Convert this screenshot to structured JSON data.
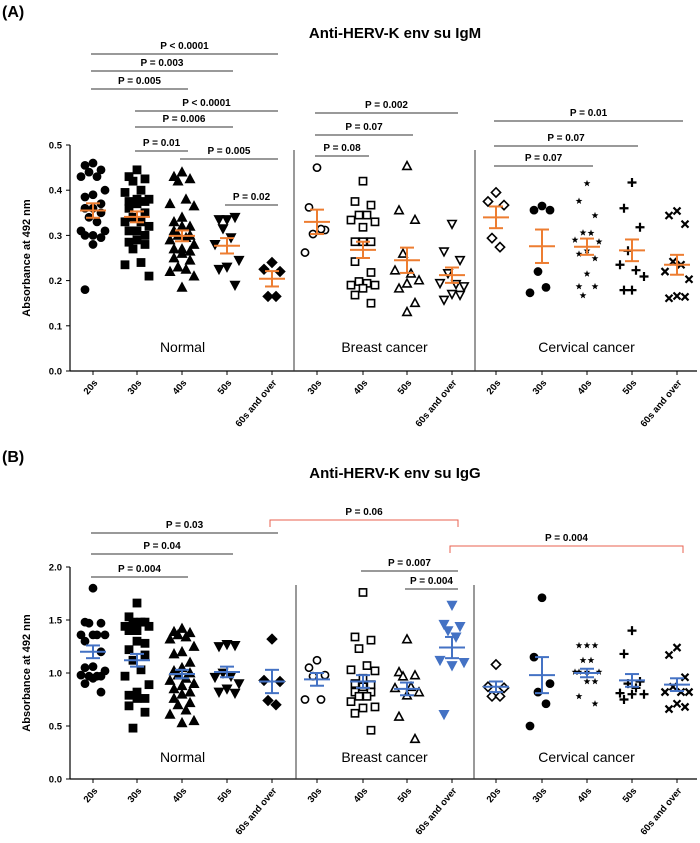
{
  "colors": {
    "igm_mean": "#ED7D31",
    "igg_mean": "#4472C4",
    "highlight_bracket": "#E8614F",
    "ink": "#000000"
  },
  "chart_data": [
    {
      "panel_label": "(A)",
      "type": "scatter",
      "title": "Anti-HERV-K env su IgM",
      "ylabel": "Absorbance at 492 nm",
      "ylim": [
        0,
        0.5
      ],
      "yticks": [
        "0.0",
        "0.1",
        "0.2",
        "0.3",
        "0.4",
        "0.5"
      ],
      "mean_color": "#ED7D31",
      "groups": [
        {
          "name": "Normal",
          "categories": [
            {
              "label": "20s",
              "marker": "circle",
              "filled": true,
              "mean": 0.355,
              "sem": 0.016,
              "values": [
                0.46,
                0.455,
                0.445,
                0.44,
                0.43,
                0.43,
                0.4,
                0.39,
                0.385,
                0.37,
                0.36,
                0.36,
                0.35,
                0.34,
                0.33,
                0.31,
                0.31,
                0.3,
                0.3,
                0.295,
                0.28,
                0.18
              ]
            },
            {
              "label": "30s",
              "marker": "square",
              "filled": true,
              "mean": 0.341,
              "sem": 0.012,
              "values": [
                0.445,
                0.43,
                0.425,
                0.42,
                0.4,
                0.395,
                0.38,
                0.38,
                0.375,
                0.375,
                0.37,
                0.36,
                0.35,
                0.34,
                0.33,
                0.33,
                0.32,
                0.31,
                0.31,
                0.3,
                0.29,
                0.285,
                0.28,
                0.27,
                0.24,
                0.235,
                0.21
              ]
            },
            {
              "label": "40s",
              "marker": "tri-up",
              "filled": true,
              "mean": 0.299,
              "sem": 0.012,
              "values": [
                0.44,
                0.43,
                0.425,
                0.42,
                0.38,
                0.37,
                0.365,
                0.34,
                0.33,
                0.32,
                0.32,
                0.31,
                0.3,
                0.3,
                0.295,
                0.29,
                0.28,
                0.27,
                0.27,
                0.265,
                0.26,
                0.25,
                0.245,
                0.23,
                0.225,
                0.22,
                0.21,
                0.185
              ]
            },
            {
              "label": "50s",
              "marker": "tri-down",
              "filled": true,
              "mean": 0.277,
              "sem": 0.017,
              "values": [
                0.335,
                0.335,
                0.34,
                0.315,
                0.295,
                0.28,
                0.245,
                0.23,
                0.225,
                0.19
              ]
            },
            {
              "label": "60s and over",
              "marker": "diamond",
              "filled": true,
              "mean": 0.204,
              "sem": 0.017,
              "values": [
                0.24,
                0.225,
                0.22,
                0.165,
                0.165
              ]
            }
          ]
        },
        {
          "name": "Breast cancer",
          "categories": [
            {
              "label": "30s",
              "marker": "circle",
              "filled": false,
              "mean": 0.33,
              "sem": 0.027,
              "values": [
                0.45,
                0.362,
                0.312,
                0.303,
                0.314,
                0.262
              ]
            },
            {
              "label": "40s",
              "marker": "square",
              "filled": false,
              "mean": 0.268,
              "sem": 0.018,
              "values": [
                0.42,
                0.375,
                0.367,
                0.345,
                0.345,
                0.334,
                0.33,
                0.318,
                0.286,
                0.286,
                0.286,
                0.242,
                0.218,
                0.198,
                0.194,
                0.19,
                0.19,
                0.183,
                0.168,
                0.15
              ]
            },
            {
              "label": "50s",
              "marker": "tri-up",
              "filled": false,
              "mean": 0.245,
              "sem": 0.028,
              "values": [
                0.454,
                0.356,
                0.335,
                0.26,
                0.216,
                0.223,
                0.201,
                0.194,
                0.183,
                0.151,
                0.131
              ]
            },
            {
              "label": "60s and over",
              "marker": "tri-down",
              "filled": false,
              "mean": 0.212,
              "sem": 0.017,
              "values": [
                0.325,
                0.264,
                0.245,
                0.216,
                0.192,
                0.194,
                0.187,
                0.17,
                0.157,
                0.168
              ]
            }
          ]
        },
        {
          "name": "Cervical cancer",
          "categories": [
            {
              "label": "20s",
              "marker": "diamond",
              "filled": false,
              "mean": 0.34,
              "sem": 0.024,
              "values": [
                0.395,
                0.375,
                0.367,
                0.294,
                0.274
              ]
            },
            {
              "label": "30s",
              "marker": "circle",
              "filled": true,
              "mean": 0.276,
              "sem": 0.037,
              "values": [
                0.365,
                0.356,
                0.356,
                0.22,
                0.185,
                0.173
              ]
            },
            {
              "label": "40s",
              "marker": "star",
              "filled": true,
              "mean": 0.275,
              "sem": 0.018,
              "values": [
                0.415,
                0.376,
                0.344,
                0.306,
                0.305,
                0.29,
                0.286,
                0.266,
                0.259,
                0.249,
                0.215,
                0.187,
                0.187,
                0.167
              ]
            },
            {
              "label": "50s",
              "marker": "plus",
              "filled": true,
              "mean": 0.267,
              "sem": 0.024,
              "values": [
                0.417,
                0.36,
                0.318,
                0.266,
                0.223,
                0.235,
                0.209,
                0.179,
                0.179
              ]
            },
            {
              "label": "60s and over",
              "marker": "cross",
              "filled": true,
              "mean": 0.235,
              "sem": 0.022,
              "values": [
                0.354,
                0.344,
                0.325,
                0.242,
                0.235,
                0.22,
                0.203,
                0.166,
                0.161,
                0.164
              ]
            }
          ]
        }
      ],
      "comparisons": [
        {
          "label": "P < 0.0001",
          "from": 0,
          "to": 4
        },
        {
          "label": "P = 0.003",
          "from": 0,
          "to": 3
        },
        {
          "label": "P = 0.005",
          "from": 0,
          "to": 2
        },
        {
          "label": "P < 0.0001",
          "from": 1,
          "to": 4
        },
        {
          "label": "P = 0.006",
          "from": 1,
          "to": 3
        },
        {
          "label": "P = 0.01",
          "from": 1,
          "to": 2
        },
        {
          "label": "P = 0.005",
          "from": 2,
          "to": 4
        },
        {
          "label": "P = 0.02",
          "from": 3,
          "to": 4
        },
        {
          "label": "P = 0.002",
          "from": 5,
          "to": 8
        },
        {
          "label": "P = 0.07",
          "from": 5,
          "to": 7
        },
        {
          "label": "P = 0.08",
          "from": 5,
          "to": 6
        },
        {
          "label": "P = 0.01",
          "from": 9,
          "to": 13
        },
        {
          "label": "P = 0.07",
          "from": 9,
          "to": 12
        },
        {
          "label": "P = 0.07",
          "from": 9,
          "to": 11
        }
      ]
    },
    {
      "panel_label": "(B)",
      "type": "scatter",
      "title": "Anti-HERV-K env su IgG",
      "ylabel": "Absorbance at 492 nm",
      "ylim": [
        0,
        2.0
      ],
      "yticks": [
        "0.0",
        "0.5",
        "1.0",
        "1.5",
        "2.0"
      ],
      "mean_color": "#4472C4",
      "groups": [
        {
          "name": "Normal",
          "categories": [
            {
              "label": "20s",
              "marker": "circle",
              "filled": true,
              "mean": 1.2,
              "sem": 0.06,
              "values": [
                1.8,
                1.48,
                1.47,
                1.47,
                1.36,
                1.36,
                1.36,
                1.36,
                1.3,
                1.2,
                1.06,
                1.05,
                0.97,
                0.97,
                0.97,
                0.98,
                1.02,
                0.95,
                0.9,
                0.82
              ]
            },
            {
              "label": "30s",
              "marker": "square",
              "filled": true,
              "mean": 1.12,
              "sem": 0.06,
              "values": [
                1.66,
                1.53,
                1.48,
                1.48,
                1.48,
                1.44,
                1.44,
                1.4,
                1.4,
                1.28,
                1.3,
                1.22,
                1.17,
                1.12,
                1.03,
                0.97,
                0.89,
                0.82,
                0.79,
                0.76,
                0.76,
                0.69,
                0.63,
                0.48
              ]
            },
            {
              "label": "40s",
              "marker": "tri-up",
              "filled": true,
              "mean": 0.99,
              "sem": 0.04,
              "values": [
                1.42,
                1.39,
                1.38,
                1.36,
                1.34,
                1.32,
                1.25,
                1.2,
                1.18,
                1.1,
                1.05,
                1.02,
                1.0,
                0.98,
                0.95,
                0.93,
                0.9,
                0.88,
                0.85,
                0.82,
                0.8,
                0.76,
                0.72,
                0.7,
                0.65,
                0.61,
                0.55,
                0.53
              ]
            },
            {
              "label": "50s",
              "marker": "tri-down",
              "filled": true,
              "mean": 1.01,
              "sem": 0.05,
              "values": [
                1.27,
                1.25,
                1.26,
                1.0,
                0.97,
                0.96,
                0.9,
                0.85,
                0.82,
                0.81
              ]
            },
            {
              "label": "60s and over",
              "marker": "diamond",
              "filled": true,
              "mean": 0.92,
              "sem": 0.11,
              "values": [
                1.32,
                0.93,
                0.92,
                0.74,
                0.7
              ]
            }
          ]
        },
        {
          "name": "Breast cancer",
          "categories": [
            {
              "label": "30s",
              "marker": "circle",
              "filled": false,
              "mean": 0.94,
              "sem": 0.06,
              "values": [
                1.12,
                1.05,
                0.98,
                0.97,
                0.75,
                0.75
              ]
            },
            {
              "label": "40s",
              "marker": "square",
              "filled": false,
              "mean": 0.92,
              "sem": 0.06,
              "values": [
                1.76,
                1.34,
                1.31,
                1.23,
                1.07,
                1.03,
                1.02,
                0.95,
                0.9,
                0.89,
                0.87,
                0.82,
                0.82,
                0.78,
                0.78,
                0.73,
                0.68,
                0.67,
                0.62,
                0.46
              ]
            },
            {
              "label": "50s",
              "marker": "tri-up",
              "filled": false,
              "mean": 0.85,
              "sem": 0.06,
              "values": [
                1.32,
                1.01,
                0.98,
                0.97,
                0.87,
                0.86,
                0.82,
                0.79,
                0.59,
                0.38
              ]
            },
            {
              "label": "60s and over",
              "marker": "tri-down",
              "filled": true,
              "color": "#4472C4",
              "mean": 1.24,
              "sem": 0.1,
              "values": [
                1.64,
                1.46,
                1.44,
                1.4,
                1.34,
                1.12,
                1.1,
                1.07,
                0.61
              ]
            }
          ]
        },
        {
          "name": "Cervical cancer",
          "categories": [
            {
              "label": "20s",
              "marker": "diamond",
              "filled": false,
              "mean": 0.87,
              "sem": 0.05,
              "values": [
                1.08,
                0.87,
                0.86,
                0.78,
                0.78
              ]
            },
            {
              "label": "30s",
              "marker": "circle",
              "filled": true,
              "mean": 0.98,
              "sem": 0.17,
              "values": [
                1.71,
                1.15,
                0.9,
                0.82,
                0.71,
                0.5
              ]
            },
            {
              "label": "40s",
              "marker": "star",
              "filled": true,
              "mean": 1.0,
              "sem": 0.04,
              "values": [
                1.26,
                1.26,
                1.26,
                1.12,
                1.12,
                1.01,
                1.01,
                1.01,
                1.01,
                0.92,
                0.92,
                0.78,
                0.71
              ]
            },
            {
              "label": "50s",
              "marker": "plus",
              "filled": true,
              "mean": 0.93,
              "sem": 0.06,
              "values": [
                1.4,
                1.18,
                0.92,
                0.9,
                0.86,
                0.81,
                0.8,
                0.8,
                0.75
              ]
            },
            {
              "label": "60s and over",
              "marker": "cross",
              "filled": true,
              "mean": 0.89,
              "sem": 0.06,
              "values": [
                1.24,
                1.17,
                0.96,
                0.87,
                0.82,
                0.82,
                0.82,
                0.71,
                0.66,
                0.68
              ]
            }
          ]
        }
      ],
      "comparisons": [
        {
          "label": "P = 0.06",
          "from": 4,
          "to": 8,
          "color": "#E8614F"
        },
        {
          "label": "P = 0.03",
          "from": 0,
          "to": 4
        },
        {
          "label": "P = 0.004",
          "from": 8,
          "to": 13,
          "color": "#E8614F"
        },
        {
          "label": "P = 0.04",
          "from": 0,
          "to": 3
        },
        {
          "label": "P = 0.007",
          "from": 6,
          "to": 8
        },
        {
          "label": "P = 0.004",
          "from": 0,
          "to": 2
        },
        {
          "label": "P = 0.004",
          "from": 7,
          "to": 8
        }
      ]
    }
  ]
}
